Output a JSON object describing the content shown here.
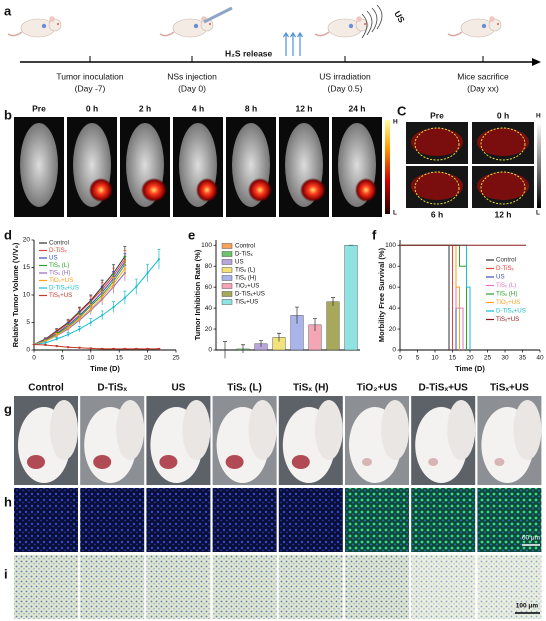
{
  "panel_labels": [
    "a",
    "b",
    "C",
    "d",
    "e",
    "f",
    "g",
    "h",
    "i"
  ],
  "timeline": {
    "release": "H₂S release",
    "us": "US",
    "events": [
      {
        "label": "Tumor inoculation",
        "day": "(Day -7)"
      },
      {
        "label": "NSs injection",
        "day": "(Day 0)"
      },
      {
        "label": "US irradiation",
        "day": "(Day 0.5)"
      },
      {
        "label": "Mice sacrifice",
        "day": "(Day xx)"
      }
    ]
  },
  "imaging_b": {
    "times": [
      "Pre",
      "0 h",
      "2 h",
      "4 h",
      "8 h",
      "12 h",
      "24 h"
    ],
    "scale_high": "H",
    "scale_low": "L"
  },
  "imaging_c": {
    "times": [
      "Pre",
      "0 h",
      "6 h",
      "12 h"
    ],
    "scale_high": "H",
    "scale_low": "L"
  },
  "groups": [
    "Control",
    "D-TiSₓ",
    "US",
    "TiSₓ (L)",
    "TiSₓ (H)",
    "TiO₂+US",
    "D-TiSₓ+US",
    "TiSₓ+US"
  ],
  "scale_h": "60 μm",
  "scale_i": "100 μm",
  "chart_data": [
    {
      "type": "line",
      "ylabel": "Relative Tumor Volume (V/V₀)",
      "xlabel": "Time (D)",
      "x": [
        0,
        2,
        4,
        6,
        8,
        10,
        12,
        14,
        16,
        18,
        20,
        22
      ],
      "xlim": [
        0,
        25
      ],
      "xticks": [
        0,
        5,
        10,
        15,
        20,
        25
      ],
      "ylim": [
        0,
        20
      ],
      "yticks": [
        0,
        5,
        10,
        15,
        20
      ],
      "series": [
        {
          "name": "Control",
          "color": "#333333",
          "values": [
            1,
            2,
            3.5,
            5,
            7,
            9,
            11.5,
            14,
            17,
            null,
            null,
            null
          ],
          "errors": [
            0,
            0.2,
            0.4,
            0.6,
            0.8,
            1,
            1.2,
            1.5,
            1.8,
            null,
            null,
            null
          ]
        },
        {
          "name": "D-TiSₓ",
          "color": "#e0443a",
          "values": [
            1,
            1.9,
            3.3,
            4.8,
            6.8,
            8.8,
            11,
            13.5,
            16.5,
            null,
            null,
            null
          ],
          "errors": [
            0,
            0.2,
            0.4,
            0.6,
            0.8,
            1,
            1.2,
            1.4,
            1.6,
            null,
            null,
            null
          ]
        },
        {
          "name": "US",
          "color": "#3b4cc0",
          "values": [
            1,
            1.8,
            3,
            4.5,
            6.3,
            8.3,
            10.5,
            13,
            16,
            null,
            null,
            null
          ],
          "errors": [
            0,
            0.2,
            0.3,
            0.5,
            0.7,
            0.9,
            1.1,
            1.3,
            1.5,
            null,
            null,
            null
          ]
        },
        {
          "name": "TiSₓ (L)",
          "color": "#2ca02c",
          "values": [
            1,
            1.7,
            2.9,
            4.2,
            6,
            8,
            10,
            12.5,
            15.5,
            null,
            null,
            null
          ],
          "errors": [
            0,
            0.2,
            0.3,
            0.5,
            0.7,
            0.9,
            1.1,
            1.3,
            1.5,
            null,
            null,
            null
          ]
        },
        {
          "name": "TiSₓ (H)",
          "color": "#9467bd",
          "values": [
            1,
            1.6,
            2.6,
            3.8,
            5.4,
            7.2,
            9.2,
            11.5,
            14,
            null,
            null,
            null
          ],
          "errors": [
            0,
            0.2,
            0.3,
            0.5,
            0.6,
            0.8,
            1,
            1.2,
            1.4,
            null,
            null,
            null
          ]
        },
        {
          "name": "TiO₂+US",
          "color": "#ff9f1c",
          "values": [
            1,
            1.6,
            2.7,
            4,
            5.7,
            7.5,
            9.6,
            12,
            14.8,
            null,
            null,
            null
          ],
          "errors": [
            0,
            0.2,
            0.3,
            0.5,
            0.6,
            0.8,
            1,
            1.2,
            1.4,
            null,
            null,
            null
          ]
        },
        {
          "name": "D-TiSₓ+US",
          "color": "#17becf",
          "values": [
            1,
            1.3,
            2,
            2.8,
            3.8,
            5,
            6.3,
            7.8,
            9.5,
            11.5,
            14,
            16.5
          ],
          "errors": [
            0,
            0.2,
            0.3,
            0.4,
            0.5,
            0.7,
            0.8,
            1,
            1.2,
            1.4,
            1.6,
            1.8
          ]
        },
        {
          "name": "TiSₓ+US",
          "color": "#c0392b",
          "values": [
            1,
            0.9,
            0.7,
            0.5,
            0.4,
            0.3,
            0.2,
            0.2,
            0.2,
            0.2,
            0.2,
            0.2
          ],
          "errors": [
            0,
            0.1,
            0.1,
            0.1,
            0.1,
            0.1,
            0.1,
            0.1,
            0.1,
            0.1,
            0.1,
            0.1
          ]
        }
      ]
    },
    {
      "type": "bar",
      "ylabel": "Tumor Inhibition Rate (%)",
      "categories": [
        "Control",
        "D-TiSₓ",
        "US",
        "TiSₓ (L)",
        "TiSₓ (H)",
        "TiO₂+US",
        "D-TiSₓ+US",
        "TiSₓ+US"
      ],
      "values": [
        0,
        1,
        6,
        12,
        33,
        24,
        46,
        100
      ],
      "errors": [
        8,
        4,
        3,
        4,
        8,
        6,
        4,
        0
      ],
      "colors": [
        "#f5a45d",
        "#6cc36c",
        "#b7a6dc",
        "#f3e27a",
        "#a9b4ea",
        "#f4a6b7",
        "#a8a85a",
        "#8fe3e3"
      ],
      "ylim": [
        0,
        105
      ],
      "yticks": [
        0,
        20,
        40,
        60,
        80,
        100
      ]
    },
    {
      "type": "line",
      "ylabel": "Morbility Free Survival (%)",
      "xlabel": "Time (D)",
      "xlim": [
        0,
        40
      ],
      "xticks": [
        0,
        5,
        10,
        15,
        20,
        25,
        30,
        35,
        40
      ],
      "ylim": [
        0,
        105
      ],
      "yticks": [
        0,
        20,
        40,
        60,
        80,
        100
      ],
      "series": [
        {
          "name": "Control",
          "color": "#333333",
          "x": [
            0,
            14,
            14
          ],
          "values": [
            100,
            100,
            0
          ]
        },
        {
          "name": "D-TiSₓ",
          "color": "#e0443a",
          "x": [
            0,
            15,
            15
          ],
          "values": [
            100,
            100,
            0
          ]
        },
        {
          "name": "US",
          "color": "#3b4cc0",
          "x": [
            0,
            16,
            16
          ],
          "values": [
            100,
            100,
            0
          ]
        },
        {
          "name": "TiSₓ (L)",
          "color": "#e377c2",
          "x": [
            0,
            16,
            16,
            18,
            18
          ],
          "values": [
            100,
            100,
            40,
            40,
            0
          ]
        },
        {
          "name": "TiSₓ (H)",
          "color": "#2ca02c",
          "x": [
            0,
            17,
            17,
            19,
            19
          ],
          "values": [
            100,
            100,
            80,
            80,
            0
          ]
        },
        {
          "name": "TiO₂+US",
          "color": "#ff9f1c",
          "x": [
            0,
            16,
            16,
            17,
            17
          ],
          "values": [
            100,
            100,
            60,
            60,
            0
          ]
        },
        {
          "name": "D-TiSₓ+US",
          "color": "#17becf",
          "x": [
            0,
            19,
            19,
            20,
            20
          ],
          "values": [
            100,
            100,
            60,
            60,
            0
          ]
        },
        {
          "name": "TiSₓ+US",
          "color": "#8b1a1a",
          "x": [
            0,
            36
          ],
          "values": [
            100,
            100
          ]
        }
      ]
    }
  ]
}
